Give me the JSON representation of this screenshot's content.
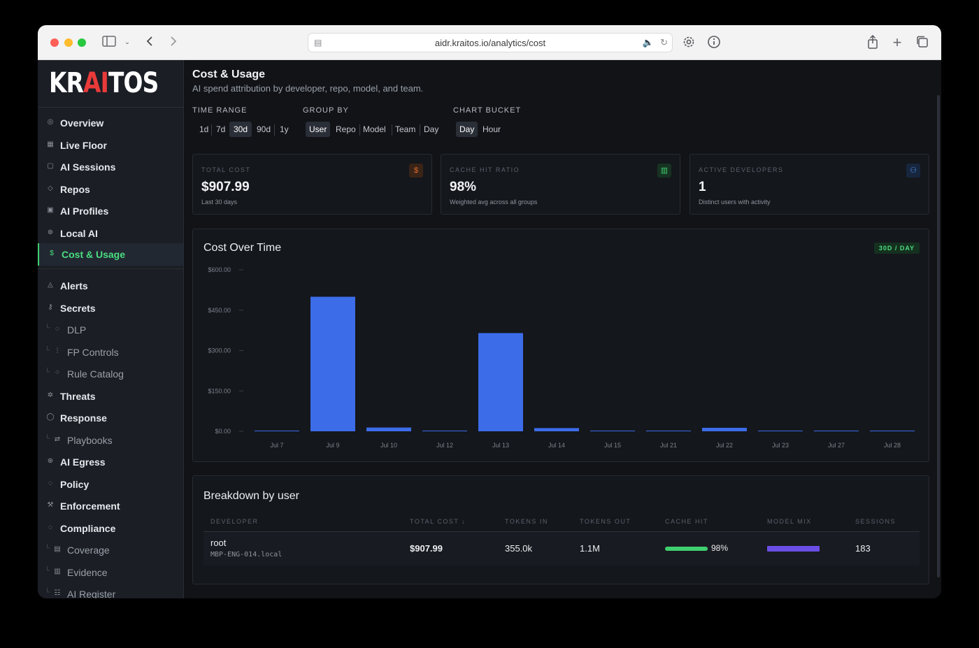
{
  "browser": {
    "url": "aidr.kraitos.io/analytics/cost"
  },
  "brand": {
    "prefix": "KR",
    "highlight": "AI",
    "suffix": "TOS",
    "accent": "#ea3a3a"
  },
  "sidebar": {
    "items": [
      {
        "label": "Overview",
        "icon": "overview-icon",
        "glyph": "◎"
      },
      {
        "label": "Live Floor",
        "icon": "grid-icon",
        "glyph": "▦"
      },
      {
        "label": "AI Sessions",
        "icon": "chat-icon",
        "glyph": "▢"
      },
      {
        "label": "Repos",
        "icon": "diamond-icon",
        "glyph": "◇"
      },
      {
        "label": "AI Profiles",
        "icon": "robot-icon",
        "glyph": "▣"
      },
      {
        "label": "Local AI",
        "icon": "globe-icon",
        "glyph": "⊕"
      },
      {
        "label": "Cost & Usage",
        "icon": "dollar-icon",
        "glyph": "$"
      },
      {
        "label": "Alerts",
        "icon": "bell-icon",
        "glyph": "◬"
      },
      {
        "label": "Secrets",
        "icon": "key-icon",
        "glyph": "⚷"
      },
      {
        "label": "DLP",
        "icon": "shield-icon",
        "glyph": "◌"
      },
      {
        "label": "FP Controls",
        "icon": "filter-icon",
        "glyph": "⫶"
      },
      {
        "label": "Rule Catalog",
        "icon": "rules-icon",
        "glyph": "⁘"
      },
      {
        "label": "Threats",
        "icon": "bug-icon",
        "glyph": "✲"
      },
      {
        "label": "Response",
        "icon": "response-icon",
        "glyph": "◯"
      },
      {
        "label": "Playbooks",
        "icon": "playbook-icon",
        "glyph": "⇄"
      },
      {
        "label": "AI Egress",
        "icon": "globe-icon",
        "glyph": "⊕"
      },
      {
        "label": "Policy",
        "icon": "shield-icon",
        "glyph": "◌"
      },
      {
        "label": "Enforcement",
        "icon": "gavel-icon",
        "glyph": "⚒"
      },
      {
        "label": "Compliance",
        "icon": "shield-icon",
        "glyph": "◌"
      },
      {
        "label": "Coverage",
        "icon": "coverage-icon",
        "glyph": "▤"
      },
      {
        "label": "Evidence",
        "icon": "evidence-icon",
        "glyph": "▥"
      },
      {
        "label": "AI Register",
        "icon": "register-icon",
        "glyph": "☷"
      }
    ]
  },
  "page": {
    "title": "Cost & Usage",
    "subtitle": "AI spend attribution by developer, repo, model, and team."
  },
  "filters": {
    "time_range": {
      "label": "TIME RANGE",
      "options": [
        "1d",
        "7d",
        "30d",
        "90d",
        "1y"
      ],
      "selected": "30d"
    },
    "group_by": {
      "label": "GROUP BY",
      "options": [
        "User",
        "Repo",
        "Model",
        "Team",
        "Day"
      ],
      "selected": "User"
    },
    "chart_bucket": {
      "label": "CHART BUCKET",
      "options": [
        "Day",
        "Hour"
      ],
      "selected": "Day"
    }
  },
  "cards": [
    {
      "label": "TOTAL COST",
      "value": "$907.99",
      "note": "Last 30 days",
      "icon": "dollar-icon",
      "glyph": "$",
      "color": "#e06a2c"
    },
    {
      "label": "CACHE HIT RATIO",
      "value": "98%",
      "note": "Weighted avg across all groups",
      "icon": "bar-chart-icon",
      "glyph": "▥",
      "color": "#3fcf6f"
    },
    {
      "label": "ACTIVE DEVELOPERS",
      "value": "1",
      "note": "Distinct users with activity",
      "icon": "users-icon",
      "glyph": "⚇",
      "color": "#4f8ef7"
    }
  ],
  "chart": {
    "title": "Cost Over Time",
    "badge": "30D / DAY",
    "bar_color": "#3c6ce8"
  },
  "chart_data": {
    "type": "bar",
    "categories": [
      "Jul 7",
      "Jul 9",
      "Jul 10",
      "Jul 12",
      "Jul 13",
      "Jul 14",
      "Jul 15",
      "Jul 21",
      "Jul 22",
      "Jul 23",
      "Jul 27",
      "Jul 28"
    ],
    "values": [
      0.5,
      500,
      14,
      2,
      365,
      12,
      2,
      1,
      13,
      0.3,
      0.5,
      1
    ],
    "ylim": [
      0,
      600
    ],
    "yticks": [
      "$600.00",
      "$450.00",
      "$300.00",
      "$150.00",
      "$0.00"
    ],
    "ytick_values": [
      600,
      450,
      300,
      150,
      0
    ],
    "title": "Cost Over Time"
  },
  "breakdown": {
    "title": "Breakdown by user",
    "headers": [
      "DEVELOPER",
      "TOTAL COST ↓",
      "TOKENS IN",
      "TOKENS OUT",
      "CACHE HIT",
      "MODEL MIX",
      "SESSIONS"
    ],
    "rows": [
      {
        "developer": "root",
        "host": "MBP-ENG-014.local",
        "total_cost": "$907.99",
        "tokens_in": "355.0k",
        "tokens_out": "1.1M",
        "cache_hit": "98%",
        "cache_hit_fraction": 0.98,
        "model_mix_color": "#6b4ee6",
        "sessions": "183"
      }
    ]
  }
}
